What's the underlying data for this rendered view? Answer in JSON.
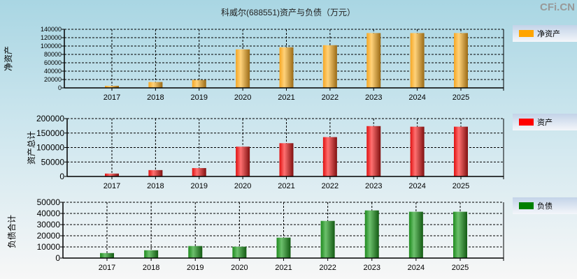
{
  "title": "科威尔(688551)资产与负债（万元）",
  "watermark": "CFi.CN",
  "chart_data": [
    {
      "type": "bar",
      "ylabel": "净资产",
      "legend": "净资产",
      "color": "#ffa500",
      "categories": [
        "2017",
        "2018",
        "2019",
        "2020",
        "2021",
        "2022",
        "2023",
        "2024",
        "2025"
      ],
      "values": [
        5000,
        14000,
        19000,
        92000,
        97000,
        102000,
        131000,
        131000,
        131000
      ],
      "yticks": [
        0,
        20000,
        40000,
        60000,
        80000,
        100000,
        120000,
        140000
      ],
      "ylim": [
        0,
        140000
      ],
      "grid": true,
      "legend_position": "right"
    },
    {
      "type": "bar",
      "ylabel": "资产总计",
      "legend": "资产",
      "color": "#ff0000",
      "categories": [
        "2017",
        "2018",
        "2019",
        "2020",
        "2021",
        "2022",
        "2023",
        "2024",
        "2025"
      ],
      "values": [
        10000,
        22000,
        29000,
        103000,
        115000,
        136000,
        174000,
        172000,
        172000
      ],
      "yticks": [
        0,
        50000,
        100000,
        150000,
        200000
      ],
      "ylim": [
        0,
        200000
      ],
      "grid": true,
      "legend_position": "right"
    },
    {
      "type": "bar",
      "ylabel": "负债合计",
      "legend": "负债",
      "color": "#008000",
      "categories": [
        "2017",
        "2018",
        "2019",
        "2020",
        "2021",
        "2022",
        "2023",
        "2024",
        "2025"
      ],
      "values": [
        4500,
        7000,
        10800,
        10200,
        18300,
        33300,
        42700,
        41500,
        41500
      ],
      "yticks": [
        0,
        10000,
        20000,
        30000,
        40000,
        50000
      ],
      "ylim": [
        0,
        50000
      ],
      "grid": true,
      "legend_position": "right"
    }
  ]
}
